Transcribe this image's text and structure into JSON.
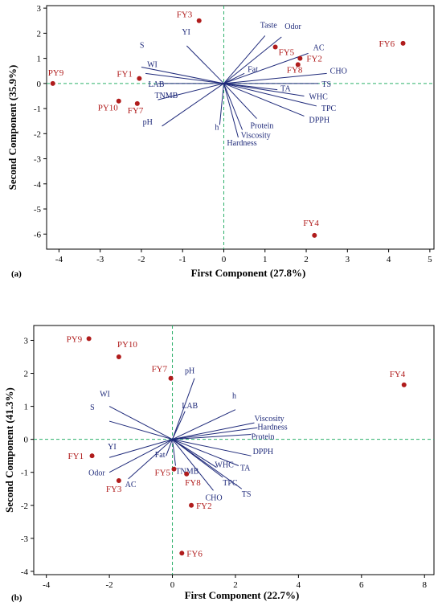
{
  "chart_data": [
    {
      "type": "scatter",
      "panel_label": "(a)",
      "xlabel": "First Component (27.8%)",
      "ylabel": "Second Component (35.9%)",
      "xlim": [
        -4.3,
        5.1
      ],
      "ylim": [
        -6.6,
        3.1
      ],
      "xticks": [
        -4,
        -3,
        -2,
        -1,
        0,
        1,
        2,
        3,
        4,
        5
      ],
      "yticks": [
        -6,
        -5,
        -4,
        -3,
        -2,
        -1,
        0,
        1,
        2,
        3
      ],
      "points": [
        {
          "label": "PY9",
          "x": -4.15,
          "y": 0.0
        },
        {
          "label": "FY1",
          "x": -2.05,
          "y": 0.2
        },
        {
          "label": "PY10",
          "x": -2.55,
          "y": -0.7
        },
        {
          "label": "FY7",
          "x": -2.1,
          "y": -0.8
        },
        {
          "label": "FY3",
          "x": -0.6,
          "y": 2.5
        },
        {
          "label": "FY5",
          "x": 1.25,
          "y": 1.45
        },
        {
          "label": "FY2",
          "x": 1.85,
          "y": 1.0
        },
        {
          "label": "FY8",
          "x": 1.8,
          "y": 0.75
        },
        {
          "label": "FY6",
          "x": 4.35,
          "y": 1.6
        },
        {
          "label": "FY4",
          "x": 2.2,
          "y": -6.05
        }
      ],
      "vectors": [
        {
          "label": "YI",
          "x": -0.9,
          "y": 1.5
        },
        {
          "label": "S",
          "x": -2.0,
          "y": 0.65
        },
        {
          "label": "WI",
          "x": -1.9,
          "y": 0.4
        },
        {
          "label": "LAB",
          "x": -1.6,
          "y": 0.0
        },
        {
          "label": "TNMB",
          "x": -1.6,
          "y": -0.65
        },
        {
          "label": "pH",
          "x": -1.5,
          "y": -1.7
        },
        {
          "label": "Taste",
          "x": 1.0,
          "y": 1.9
        },
        {
          "label": "Odor",
          "x": 1.4,
          "y": 1.85
        },
        {
          "label": "Fat",
          "x": 0.5,
          "y": 0.4
        },
        {
          "label": "AC",
          "x": 2.05,
          "y": 1.2
        },
        {
          "label": "CHO",
          "x": 2.5,
          "y": 0.4
        },
        {
          "label": "TS",
          "x": 2.3,
          "y": 0.0
        },
        {
          "label": "TA",
          "x": 1.3,
          "y": -0.25
        },
        {
          "label": "WHC",
          "x": 1.95,
          "y": -0.5
        },
        {
          "label": "TPC",
          "x": 2.25,
          "y": -0.9
        },
        {
          "label": "DPPH",
          "x": 1.95,
          "y": -1.3
        },
        {
          "label": "Protein",
          "x": 0.8,
          "y": -1.4
        },
        {
          "label": "h",
          "x": -0.1,
          "y": -1.65
        },
        {
          "label": "Viscosity",
          "x": 0.45,
          "y": -1.85
        },
        {
          "label": "Hardness",
          "x": 0.35,
          "y": -2.15
        }
      ]
    },
    {
      "type": "scatter",
      "panel_label": "(b)",
      "xlabel": "First Component (22.7%)",
      "ylabel": "Second Component (41.3%)",
      "xlim": [
        -4.4,
        8.3
      ],
      "ylim": [
        -4.1,
        3.45
      ],
      "xticks": [
        -4,
        -2,
        0,
        2,
        4,
        6,
        8
      ],
      "yticks": [
        -4,
        -3,
        -2,
        -1,
        0,
        1,
        2,
        3
      ],
      "points": [
        {
          "label": "PY9",
          "x": -2.65,
          "y": 3.05
        },
        {
          "label": "PY10",
          "x": -1.7,
          "y": 2.5
        },
        {
          "label": "FY7",
          "x": -0.05,
          "y": 1.85
        },
        {
          "label": "FY1",
          "x": -2.55,
          "y": -0.5
        },
        {
          "label": "FY3",
          "x": -1.7,
          "y": -1.25
        },
        {
          "label": "FY5",
          "x": 0.05,
          "y": -0.9
        },
        {
          "label": "FY8",
          "x": 0.45,
          "y": -1.05
        },
        {
          "label": "FY2",
          "x": 0.6,
          "y": -2.0
        },
        {
          "label": "FY6",
          "x": 0.3,
          "y": -3.45
        },
        {
          "label": "FY4",
          "x": 7.35,
          "y": 1.65
        }
      ],
      "vectors": [
        {
          "label": "pH",
          "x": 0.7,
          "y": 1.85
        },
        {
          "label": "WI",
          "x": -2.0,
          "y": 1.0
        },
        {
          "label": "S",
          "x": -2.0,
          "y": 0.55
        },
        {
          "label": "LAB",
          "x": 0.4,
          "y": 0.85
        },
        {
          "label": "h",
          "x": 2.0,
          "y": 0.9
        },
        {
          "label": "Viscosity",
          "x": 2.6,
          "y": 0.5
        },
        {
          "label": "Hardness",
          "x": 2.7,
          "y": 0.35
        },
        {
          "label": "Protein",
          "x": 2.5,
          "y": 0.15
        },
        {
          "label": "DPPH",
          "x": 2.5,
          "y": -0.5
        },
        {
          "label": "TA",
          "x": 2.1,
          "y": -0.8
        },
        {
          "label": "WHC",
          "x": 1.4,
          "y": -0.85
        },
        {
          "label": "TPC",
          "x": 1.6,
          "y": -1.15
        },
        {
          "label": "TS",
          "x": 2.2,
          "y": -1.5
        },
        {
          "label": "CHO",
          "x": 1.3,
          "y": -1.55
        },
        {
          "label": "TNMB",
          "x": 0.1,
          "y": -0.8
        },
        {
          "label": "Fat",
          "x": -0.2,
          "y": -0.5
        },
        {
          "label": "YI",
          "x": -2.0,
          "y": -0.55
        },
        {
          "label": "Odor",
          "x": -2.0,
          "y": -1.0
        },
        {
          "label": "AC",
          "x": -1.4,
          "y": -1.2
        }
      ]
    }
  ]
}
